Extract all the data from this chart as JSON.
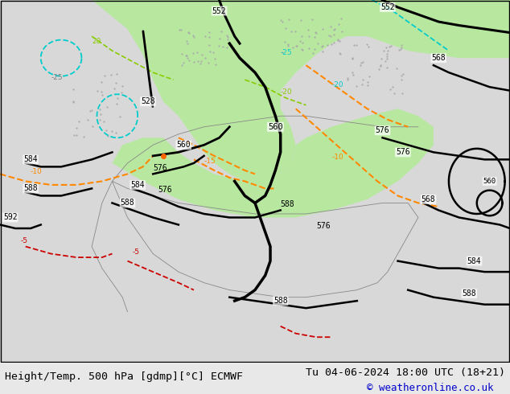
{
  "title_left": "Height/Temp. 500 hPa [gdmp][°C] ECMWF",
  "title_right": "Tu 04-06-2024 18:00 UTC (18+21)",
  "copyright": "© weatheronline.co.uk",
  "bg_color": "#e8e8e8",
  "land_color": "#c8c8c8",
  "green_color": "#b8e8a0",
  "figsize": [
    6.34,
    4.9
  ],
  "dpi": 100,
  "bottom_bar_color": "#ffffff",
  "title_fontsize": 9.5,
  "copyright_color": "#0000cc",
  "text_color": "#000000"
}
